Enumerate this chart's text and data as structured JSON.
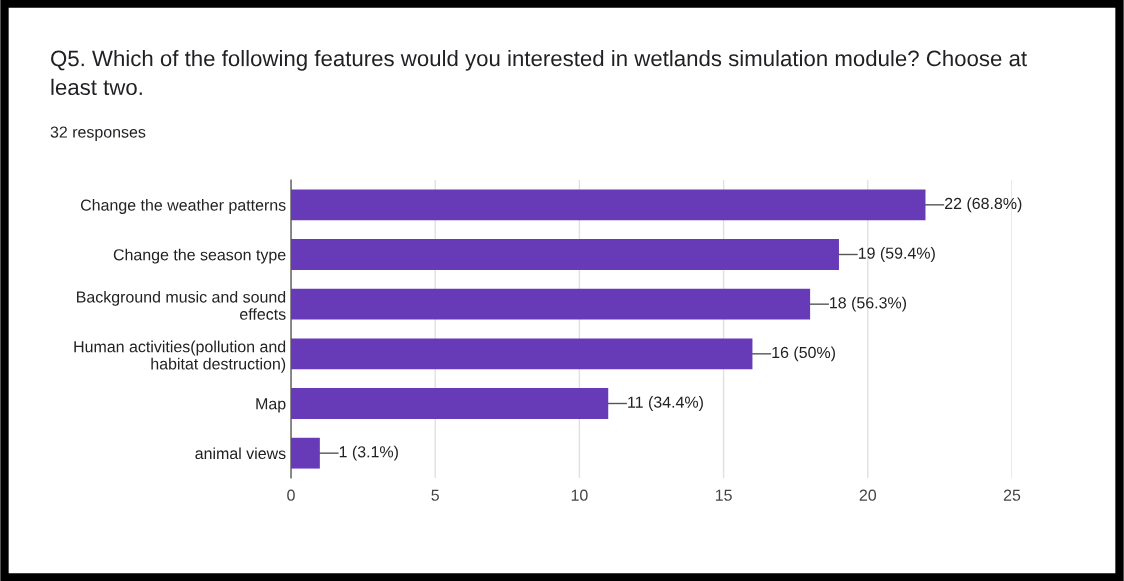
{
  "chart_data": {
    "type": "bar",
    "orientation": "horizontal",
    "title": "Q5. Which of the following features would you interested in wetlands simulation module? Choose at\nleast two.",
    "subtitle": "32 responses",
    "categories": [
      "Change the weather patterns",
      "Change the season type",
      "Background music and sound\neffects",
      "Human activities(pollution and\nhabitat destruction)",
      "Map",
      "animal views"
    ],
    "values": [
      22,
      19,
      18,
      16,
      11,
      1
    ],
    "value_labels": [
      "22 (68.8%)",
      "19 (59.4%)",
      "18 (56.3%)",
      "16 (50%)",
      "11 (34.4%)",
      "1 (3.1%)"
    ],
    "color": "#673ab7",
    "xlim": [
      0,
      25
    ],
    "xticks": [
      0,
      5,
      10,
      15,
      20,
      25
    ],
    "grid": "x",
    "legend": false
  }
}
